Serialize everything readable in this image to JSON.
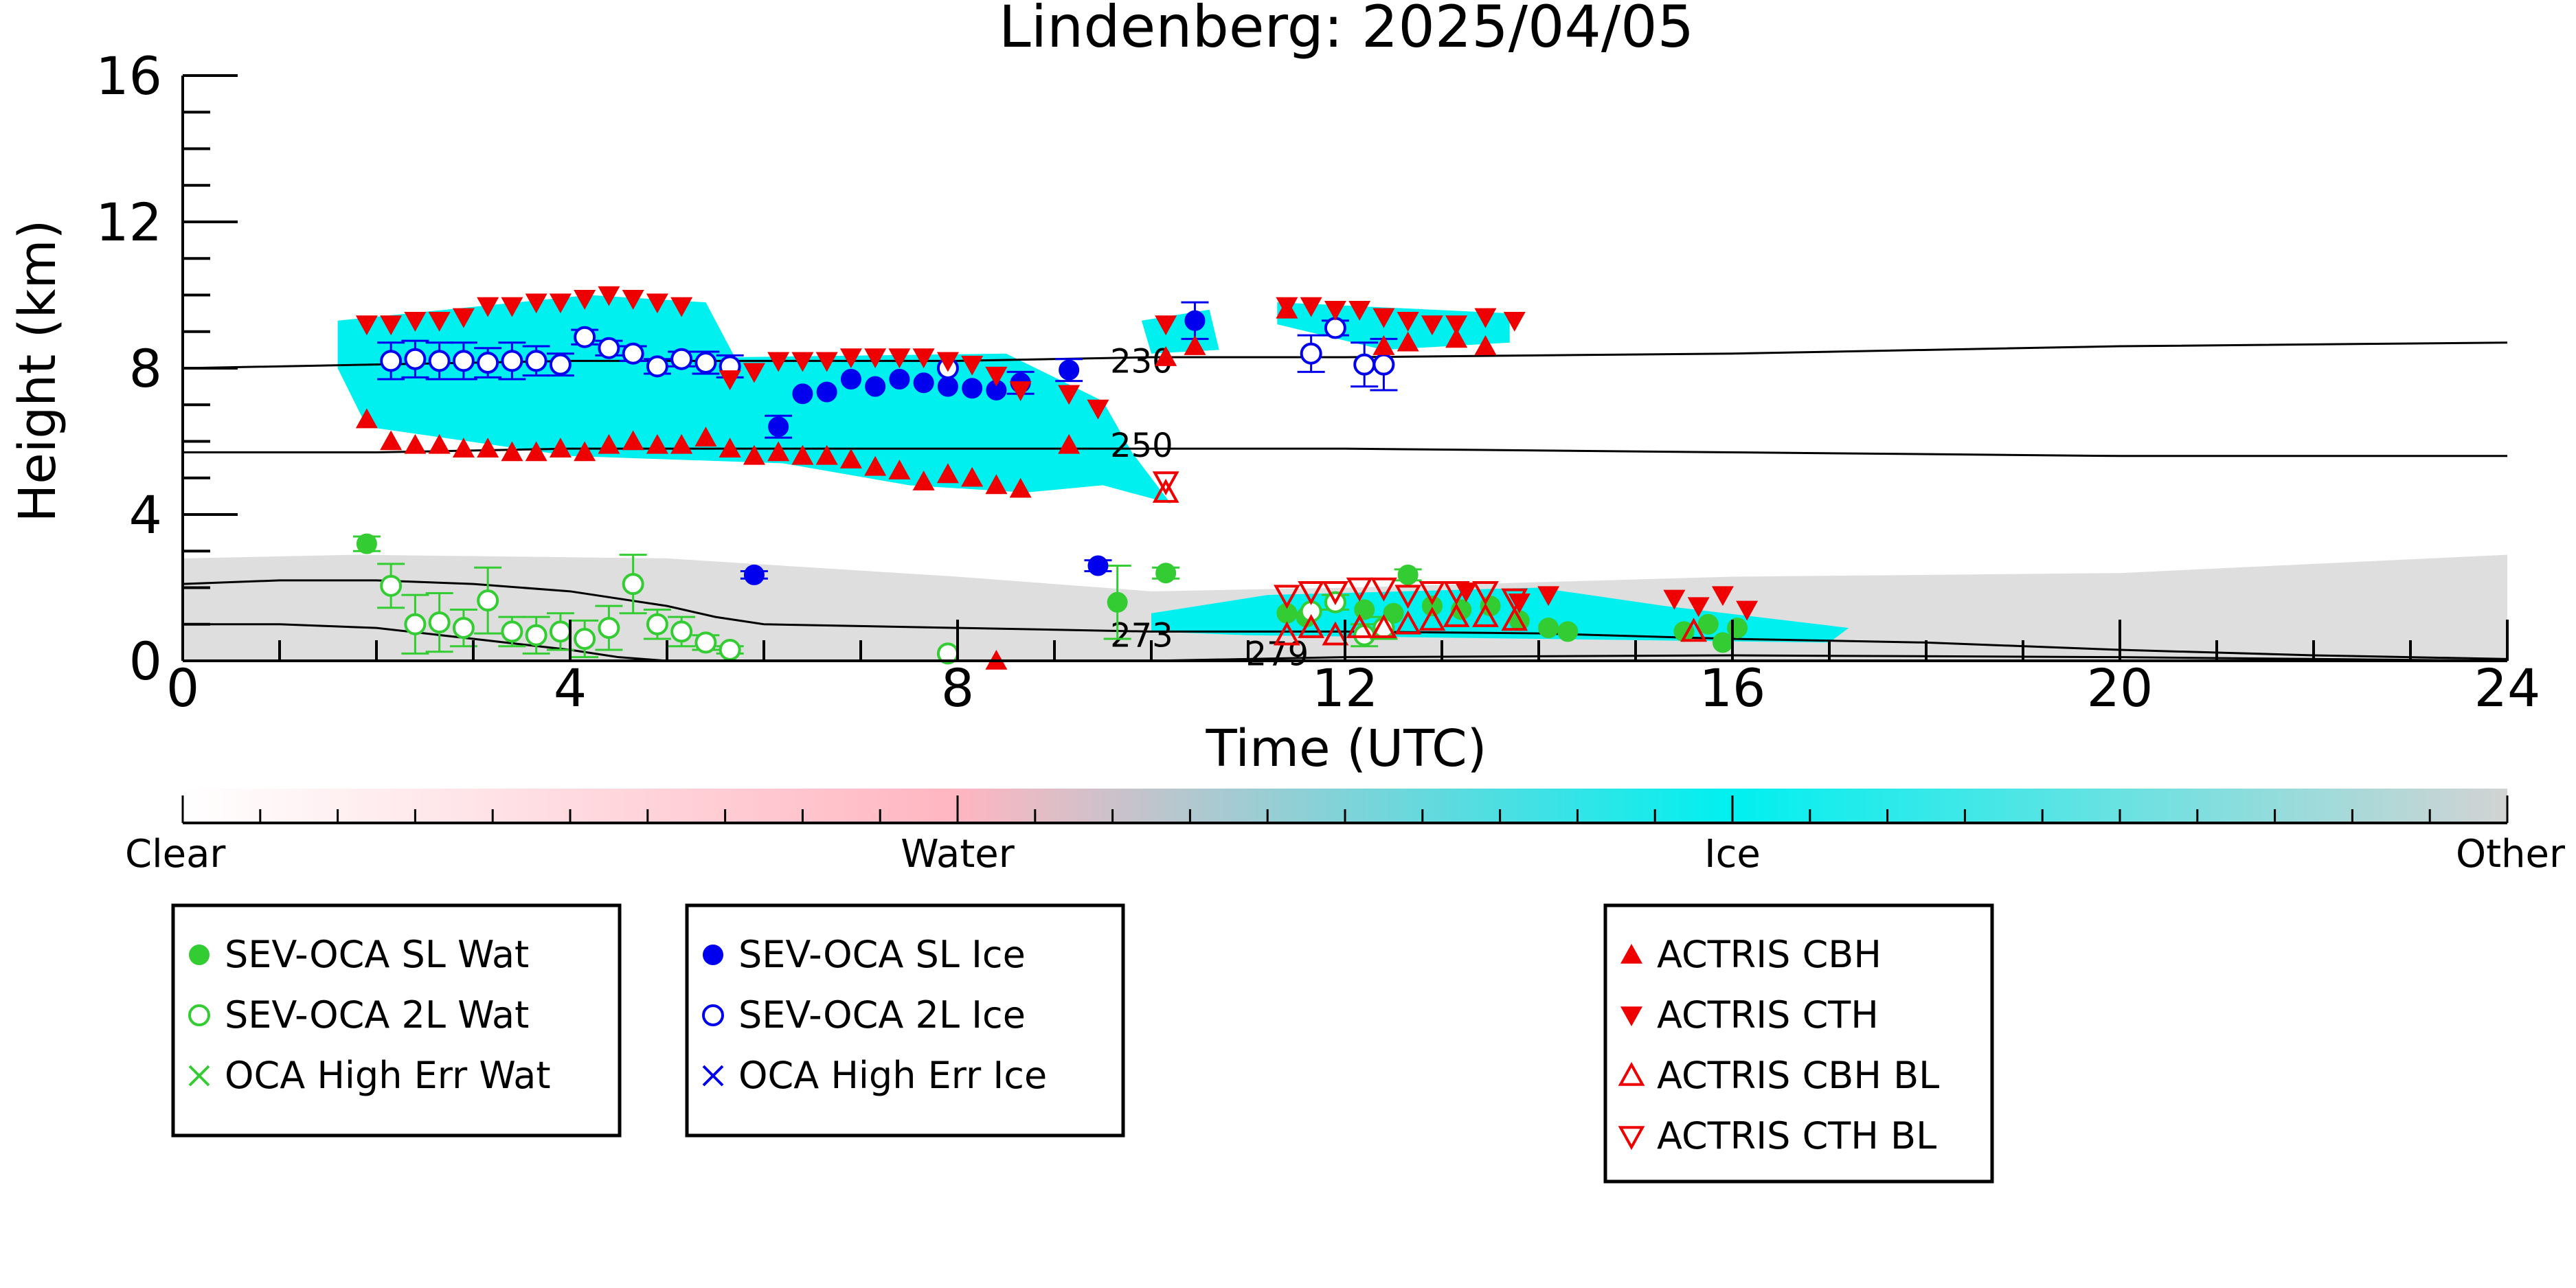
{
  "chart_data": {
    "type": "scatter",
    "title": "Lindenberg: 2025/04/05",
    "xlabel": "Time (UTC)",
    "ylabel": "Height (km)",
    "xlim": [
      0,
      24
    ],
    "ylim": [
      0,
      16
    ],
    "xticks": [
      0,
      4,
      8,
      12,
      16,
      20,
      24
    ],
    "yticks": [
      0,
      4,
      8,
      12,
      16
    ],
    "grid": false,
    "colorbar": {
      "labels": [
        "Clear",
        "Water",
        "Ice",
        "Other"
      ],
      "colors": [
        "#ffffff",
        "#ffb6c1",
        "#00f0f0",
        "#d3d3d3"
      ]
    },
    "contours": [
      {
        "label": "230",
        "x": [
          0,
          2,
          4,
          6,
          8,
          10,
          12,
          16,
          20,
          24
        ],
        "y": [
          8.0,
          8.1,
          8.2,
          8.2,
          8.2,
          8.3,
          8.3,
          8.4,
          8.6,
          8.7
        ]
      },
      {
        "label": "250",
        "x": [
          0,
          2,
          4,
          6,
          8,
          10,
          12,
          16,
          20,
          24
        ],
        "y": [
          5.7,
          5.7,
          5.8,
          5.8,
          5.8,
          5.8,
          5.8,
          5.7,
          5.6,
          5.6
        ]
      },
      {
        "label": "273",
        "x": [
          0,
          1,
          2,
          3,
          4,
          5,
          5.5,
          6,
          8,
          10,
          12,
          14,
          16,
          18,
          20,
          22,
          24
        ],
        "y": [
          2.1,
          2.2,
          2.2,
          2.1,
          1.9,
          1.5,
          1.2,
          1.0,
          0.9,
          0.8,
          0.8,
          0.75,
          0.6,
          0.5,
          0.3,
          0.15,
          0.05
        ]
      },
      {
        "label": "279",
        "x": [
          0,
          1,
          2,
          3,
          4,
          4.5,
          5,
          10,
          12,
          16,
          20,
          24
        ],
        "y": [
          1.0,
          1.0,
          0.9,
          0.6,
          0.3,
          0.1,
          0.0,
          0.0,
          0.1,
          0.15,
          0.1,
          0.0
        ]
      }
    ],
    "series": [
      {
        "name": "SEV-OCA SL Wat",
        "marker": "filled-circle",
        "color": "#33cc33",
        "points": [
          {
            "x": 1.9,
            "y": 3.2,
            "err": 0.2
          },
          {
            "x": 9.65,
            "y": 1.6,
            "err": 1.0
          },
          {
            "x": 10.15,
            "y": 2.4,
            "err": 0.15
          },
          {
            "x": 11.4,
            "y": 1.3
          },
          {
            "x": 11.6,
            "y": 1.2
          },
          {
            "x": 12.2,
            "y": 1.4
          },
          {
            "x": 12.5,
            "y": 1.3
          },
          {
            "x": 12.65,
            "y": 2.35,
            "err": 0.15
          },
          {
            "x": 12.9,
            "y": 1.5
          },
          {
            "x": 13.2,
            "y": 1.4
          },
          {
            "x": 13.5,
            "y": 1.5
          },
          {
            "x": 13.8,
            "y": 1.1
          },
          {
            "x": 14.1,
            "y": 0.9
          },
          {
            "x": 14.3,
            "y": 0.8
          },
          {
            "x": 15.5,
            "y": 0.8
          },
          {
            "x": 15.75,
            "y": 1.0
          },
          {
            "x": 15.9,
            "y": 0.5
          },
          {
            "x": 16.05,
            "y": 0.9
          }
        ]
      },
      {
        "name": "SEV-OCA 2L Wat",
        "marker": "open-circle",
        "color": "#33cc33",
        "points": [
          {
            "x": 2.15,
            "y": 2.05,
            "err": 0.6
          },
          {
            "x": 2.4,
            "y": 1.0,
            "err": 0.8
          },
          {
            "x": 2.65,
            "y": 1.05,
            "err": 0.8
          },
          {
            "x": 2.9,
            "y": 0.9,
            "err": 0.5
          },
          {
            "x": 3.15,
            "y": 1.65,
            "err": 0.9
          },
          {
            "x": 3.4,
            "y": 0.8,
            "err": 0.4
          },
          {
            "x": 3.65,
            "y": 0.7,
            "err": 0.5
          },
          {
            "x": 3.9,
            "y": 0.8,
            "err": 0.5
          },
          {
            "x": 4.15,
            "y": 0.6,
            "err": 0.5
          },
          {
            "x": 4.4,
            "y": 0.9,
            "err": 0.6
          },
          {
            "x": 4.65,
            "y": 2.1,
            "err": 0.8
          },
          {
            "x": 4.9,
            "y": 1.0,
            "err": 0.4
          },
          {
            "x": 5.15,
            "y": 0.8,
            "err": 0.4
          },
          {
            "x": 5.4,
            "y": 0.5,
            "err": 0.2
          },
          {
            "x": 5.65,
            "y": 0.3,
            "err": 0.1
          },
          {
            "x": 7.9,
            "y": 0.2
          },
          {
            "x": 11.65,
            "y": 1.35
          },
          {
            "x": 11.9,
            "y": 1.6,
            "err": 0.2
          },
          {
            "x": 12.2,
            "y": 0.7,
            "err": 0.3
          },
          {
            "x": 12.4,
            "y": 0.9,
            "err": 0.3
          }
        ]
      },
      {
        "name": "OCA High Err Wat",
        "marker": "cross",
        "color": "#33cc33",
        "points": []
      },
      {
        "name": "SEV-OCA SL Ice",
        "marker": "filled-circle",
        "color": "#0000ee",
        "points": [
          {
            "x": 5.9,
            "y": 2.35,
            "err": 0.1
          },
          {
            "x": 6.15,
            "y": 6.4,
            "err": 0.3
          },
          {
            "x": 6.4,
            "y": 7.3
          },
          {
            "x": 6.65,
            "y": 7.35
          },
          {
            "x": 6.9,
            "y": 7.7
          },
          {
            "x": 7.15,
            "y": 7.5
          },
          {
            "x": 7.4,
            "y": 7.7
          },
          {
            "x": 7.65,
            "y": 7.6
          },
          {
            "x": 7.9,
            "y": 7.5
          },
          {
            "x": 8.15,
            "y": 7.45
          },
          {
            "x": 8.4,
            "y": 7.4
          },
          {
            "x": 8.65,
            "y": 7.6,
            "err": 0.3
          },
          {
            "x": 9.15,
            "y": 7.95,
            "err": 0.3
          },
          {
            "x": 9.45,
            "y": 2.6,
            "err": 0.15
          },
          {
            "x": 10.45,
            "y": 9.3,
            "err": 0.5
          }
        ]
      },
      {
        "name": "SEV-OCA 2L Ice",
        "marker": "open-circle",
        "color": "#0000ee",
        "points": [
          {
            "x": 2.15,
            "y": 8.2,
            "err": 0.5
          },
          {
            "x": 2.4,
            "y": 8.25,
            "err": 0.5
          },
          {
            "x": 2.65,
            "y": 8.2,
            "err": 0.5
          },
          {
            "x": 2.9,
            "y": 8.2,
            "err": 0.5
          },
          {
            "x": 3.15,
            "y": 8.15,
            "err": 0.4
          },
          {
            "x": 3.4,
            "y": 8.2,
            "err": 0.5
          },
          {
            "x": 3.65,
            "y": 8.2,
            "err": 0.4
          },
          {
            "x": 3.9,
            "y": 8.1,
            "err": 0.3
          },
          {
            "x": 4.15,
            "y": 8.85,
            "err": 0.2
          },
          {
            "x": 4.4,
            "y": 8.55,
            "err": 0.2
          },
          {
            "x": 4.65,
            "y": 8.4,
            "err": 0.2
          },
          {
            "x": 4.9,
            "y": 8.05,
            "err": 0.2
          },
          {
            "x": 5.15,
            "y": 8.25,
            "err": 0.2
          },
          {
            "x": 5.4,
            "y": 8.15,
            "err": 0.3
          },
          {
            "x": 5.65,
            "y": 8.05,
            "err": 0.3
          },
          {
            "x": 7.9,
            "y": 8.0
          },
          {
            "x": 11.65,
            "y": 8.4,
            "err": 0.5
          },
          {
            "x": 11.9,
            "y": 9.1,
            "err": 0.2
          },
          {
            "x": 12.2,
            "y": 8.1,
            "err": 0.6
          },
          {
            "x": 12.4,
            "y": 8.1,
            "err": 0.7
          }
        ]
      },
      {
        "name": "OCA High Err Ice",
        "marker": "cross",
        "color": "#0000ee",
        "points": []
      },
      {
        "name": "ACTRIS CBH",
        "marker": "filled-triangle-up",
        "color": "#ee0000",
        "points": [
          {
            "x": 1.9,
            "y": 6.6
          },
          {
            "x": 2.15,
            "y": 6.0
          },
          {
            "x": 2.4,
            "y": 5.9
          },
          {
            "x": 2.65,
            "y": 5.9
          },
          {
            "x": 2.9,
            "y": 5.8
          },
          {
            "x": 3.15,
            "y": 5.8
          },
          {
            "x": 3.4,
            "y": 5.7
          },
          {
            "x": 3.65,
            "y": 5.7
          },
          {
            "x": 3.9,
            "y": 5.8
          },
          {
            "x": 4.15,
            "y": 5.7
          },
          {
            "x": 4.4,
            "y": 5.9
          },
          {
            "x": 4.65,
            "y": 6.0
          },
          {
            "x": 4.9,
            "y": 5.9
          },
          {
            "x": 5.15,
            "y": 5.9
          },
          {
            "x": 5.4,
            "y": 6.1
          },
          {
            "x": 5.65,
            "y": 5.8
          },
          {
            "x": 5.9,
            "y": 5.6
          },
          {
            "x": 6.15,
            "y": 5.7
          },
          {
            "x": 6.4,
            "y": 5.6
          },
          {
            "x": 6.65,
            "y": 5.6
          },
          {
            "x": 6.9,
            "y": 5.5
          },
          {
            "x": 7.15,
            "y": 5.3
          },
          {
            "x": 7.4,
            "y": 5.2
          },
          {
            "x": 7.65,
            "y": 4.9
          },
          {
            "x": 7.9,
            "y": 5.1
          },
          {
            "x": 8.15,
            "y": 5.0
          },
          {
            "x": 8.4,
            "y": 4.8
          },
          {
            "x": 8.65,
            "y": 4.7
          },
          {
            "x": 9.15,
            "y": 5.9
          },
          {
            "x": 10.15,
            "y": 8.3
          },
          {
            "x": 10.45,
            "y": 8.6
          },
          {
            "x": 11.4,
            "y": 9.6
          },
          {
            "x": 12.4,
            "y": 8.6
          },
          {
            "x": 12.65,
            "y": 8.7
          },
          {
            "x": 13.15,
            "y": 8.8
          },
          {
            "x": 13.45,
            "y": 8.6
          },
          {
            "x": 8.4,
            "y": 0.0
          }
        ]
      },
      {
        "name": "ACTRIS CTH",
        "marker": "filled-triangle-down",
        "color": "#ee0000",
        "points": [
          {
            "x": 1.9,
            "y": 9.2
          },
          {
            "x": 2.15,
            "y": 9.2
          },
          {
            "x": 2.4,
            "y": 9.3
          },
          {
            "x": 2.65,
            "y": 9.3
          },
          {
            "x": 2.9,
            "y": 9.4
          },
          {
            "x": 3.15,
            "y": 9.7
          },
          {
            "x": 3.4,
            "y": 9.7
          },
          {
            "x": 3.65,
            "y": 9.8
          },
          {
            "x": 3.9,
            "y": 9.8
          },
          {
            "x": 4.15,
            "y": 9.9
          },
          {
            "x": 4.4,
            "y": 10.0
          },
          {
            "x": 4.65,
            "y": 9.9
          },
          {
            "x": 4.9,
            "y": 9.8
          },
          {
            "x": 5.15,
            "y": 9.7
          },
          {
            "x": 5.65,
            "y": 7.7
          },
          {
            "x": 5.9,
            "y": 7.9
          },
          {
            "x": 6.15,
            "y": 8.2
          },
          {
            "x": 6.4,
            "y": 8.2
          },
          {
            "x": 6.65,
            "y": 8.2
          },
          {
            "x": 6.9,
            "y": 8.3
          },
          {
            "x": 7.15,
            "y": 8.3
          },
          {
            "x": 7.4,
            "y": 8.3
          },
          {
            "x": 7.65,
            "y": 8.3
          },
          {
            "x": 7.9,
            "y": 8.2
          },
          {
            "x": 8.15,
            "y": 8.1
          },
          {
            "x": 8.4,
            "y": 7.8
          },
          {
            "x": 8.65,
            "y": 7.4
          },
          {
            "x": 9.15,
            "y": 7.3
          },
          {
            "x": 9.45,
            "y": 6.9
          },
          {
            "x": 10.15,
            "y": 9.2
          },
          {
            "x": 11.4,
            "y": 9.7
          },
          {
            "x": 11.65,
            "y": 9.7
          },
          {
            "x": 11.9,
            "y": 9.6
          },
          {
            "x": 12.15,
            "y": 9.6
          },
          {
            "x": 12.4,
            "y": 9.4
          },
          {
            "x": 12.65,
            "y": 9.3
          },
          {
            "x": 12.9,
            "y": 9.2
          },
          {
            "x": 13.15,
            "y": 9.2
          },
          {
            "x": 13.45,
            "y": 9.4
          },
          {
            "x": 13.75,
            "y": 9.3
          },
          {
            "x": 13.25,
            "y": 1.9
          },
          {
            "x": 13.8,
            "y": 1.6
          },
          {
            "x": 14.1,
            "y": 1.8
          },
          {
            "x": 15.4,
            "y": 1.7
          },
          {
            "x": 15.65,
            "y": 1.5
          },
          {
            "x": 15.9,
            "y": 1.8
          },
          {
            "x": 16.15,
            "y": 1.4
          }
        ]
      },
      {
        "name": "ACTRIS CBH BL",
        "marker": "open-triangle-up",
        "color": "#ee0000",
        "points": [
          {
            "x": 10.15,
            "y": 4.6
          },
          {
            "x": 11.4,
            "y": 0.7
          },
          {
            "x": 11.65,
            "y": 0.9
          },
          {
            "x": 11.9,
            "y": 0.7
          },
          {
            "x": 12.15,
            "y": 0.9
          },
          {
            "x": 12.4,
            "y": 0.9
          },
          {
            "x": 12.65,
            "y": 1.0
          },
          {
            "x": 12.9,
            "y": 1.1
          },
          {
            "x": 13.15,
            "y": 1.2
          },
          {
            "x": 13.45,
            "y": 1.2
          },
          {
            "x": 13.75,
            "y": 1.1
          },
          {
            "x": 15.6,
            "y": 0.8
          }
        ]
      },
      {
        "name": "ACTRIS CTH BL",
        "marker": "open-triangle-down",
        "color": "#ee0000",
        "points": [
          {
            "x": 10.15,
            "y": 4.9
          },
          {
            "x": 11.4,
            "y": 1.8
          },
          {
            "x": 11.65,
            "y": 1.9
          },
          {
            "x": 11.9,
            "y": 1.9
          },
          {
            "x": 12.15,
            "y": 2.0
          },
          {
            "x": 12.4,
            "y": 2.0
          },
          {
            "x": 12.65,
            "y": 1.8
          },
          {
            "x": 12.9,
            "y": 1.9
          },
          {
            "x": 13.15,
            "y": 1.9
          },
          {
            "x": 13.45,
            "y": 1.9
          },
          {
            "x": 13.75,
            "y": 1.7
          }
        ]
      }
    ],
    "legend_groups": [
      [
        "SEV-OCA SL Wat",
        "SEV-OCA 2L Wat",
        "OCA High Err Wat"
      ],
      [
        "SEV-OCA SL Ice",
        "SEV-OCA 2L Ice",
        "OCA High Err Ice"
      ],
      [
        "ACTRIS CBH",
        "ACTRIS CTH",
        "ACTRIS CBH BL",
        "ACTRIS CTH BL"
      ]
    ]
  }
}
